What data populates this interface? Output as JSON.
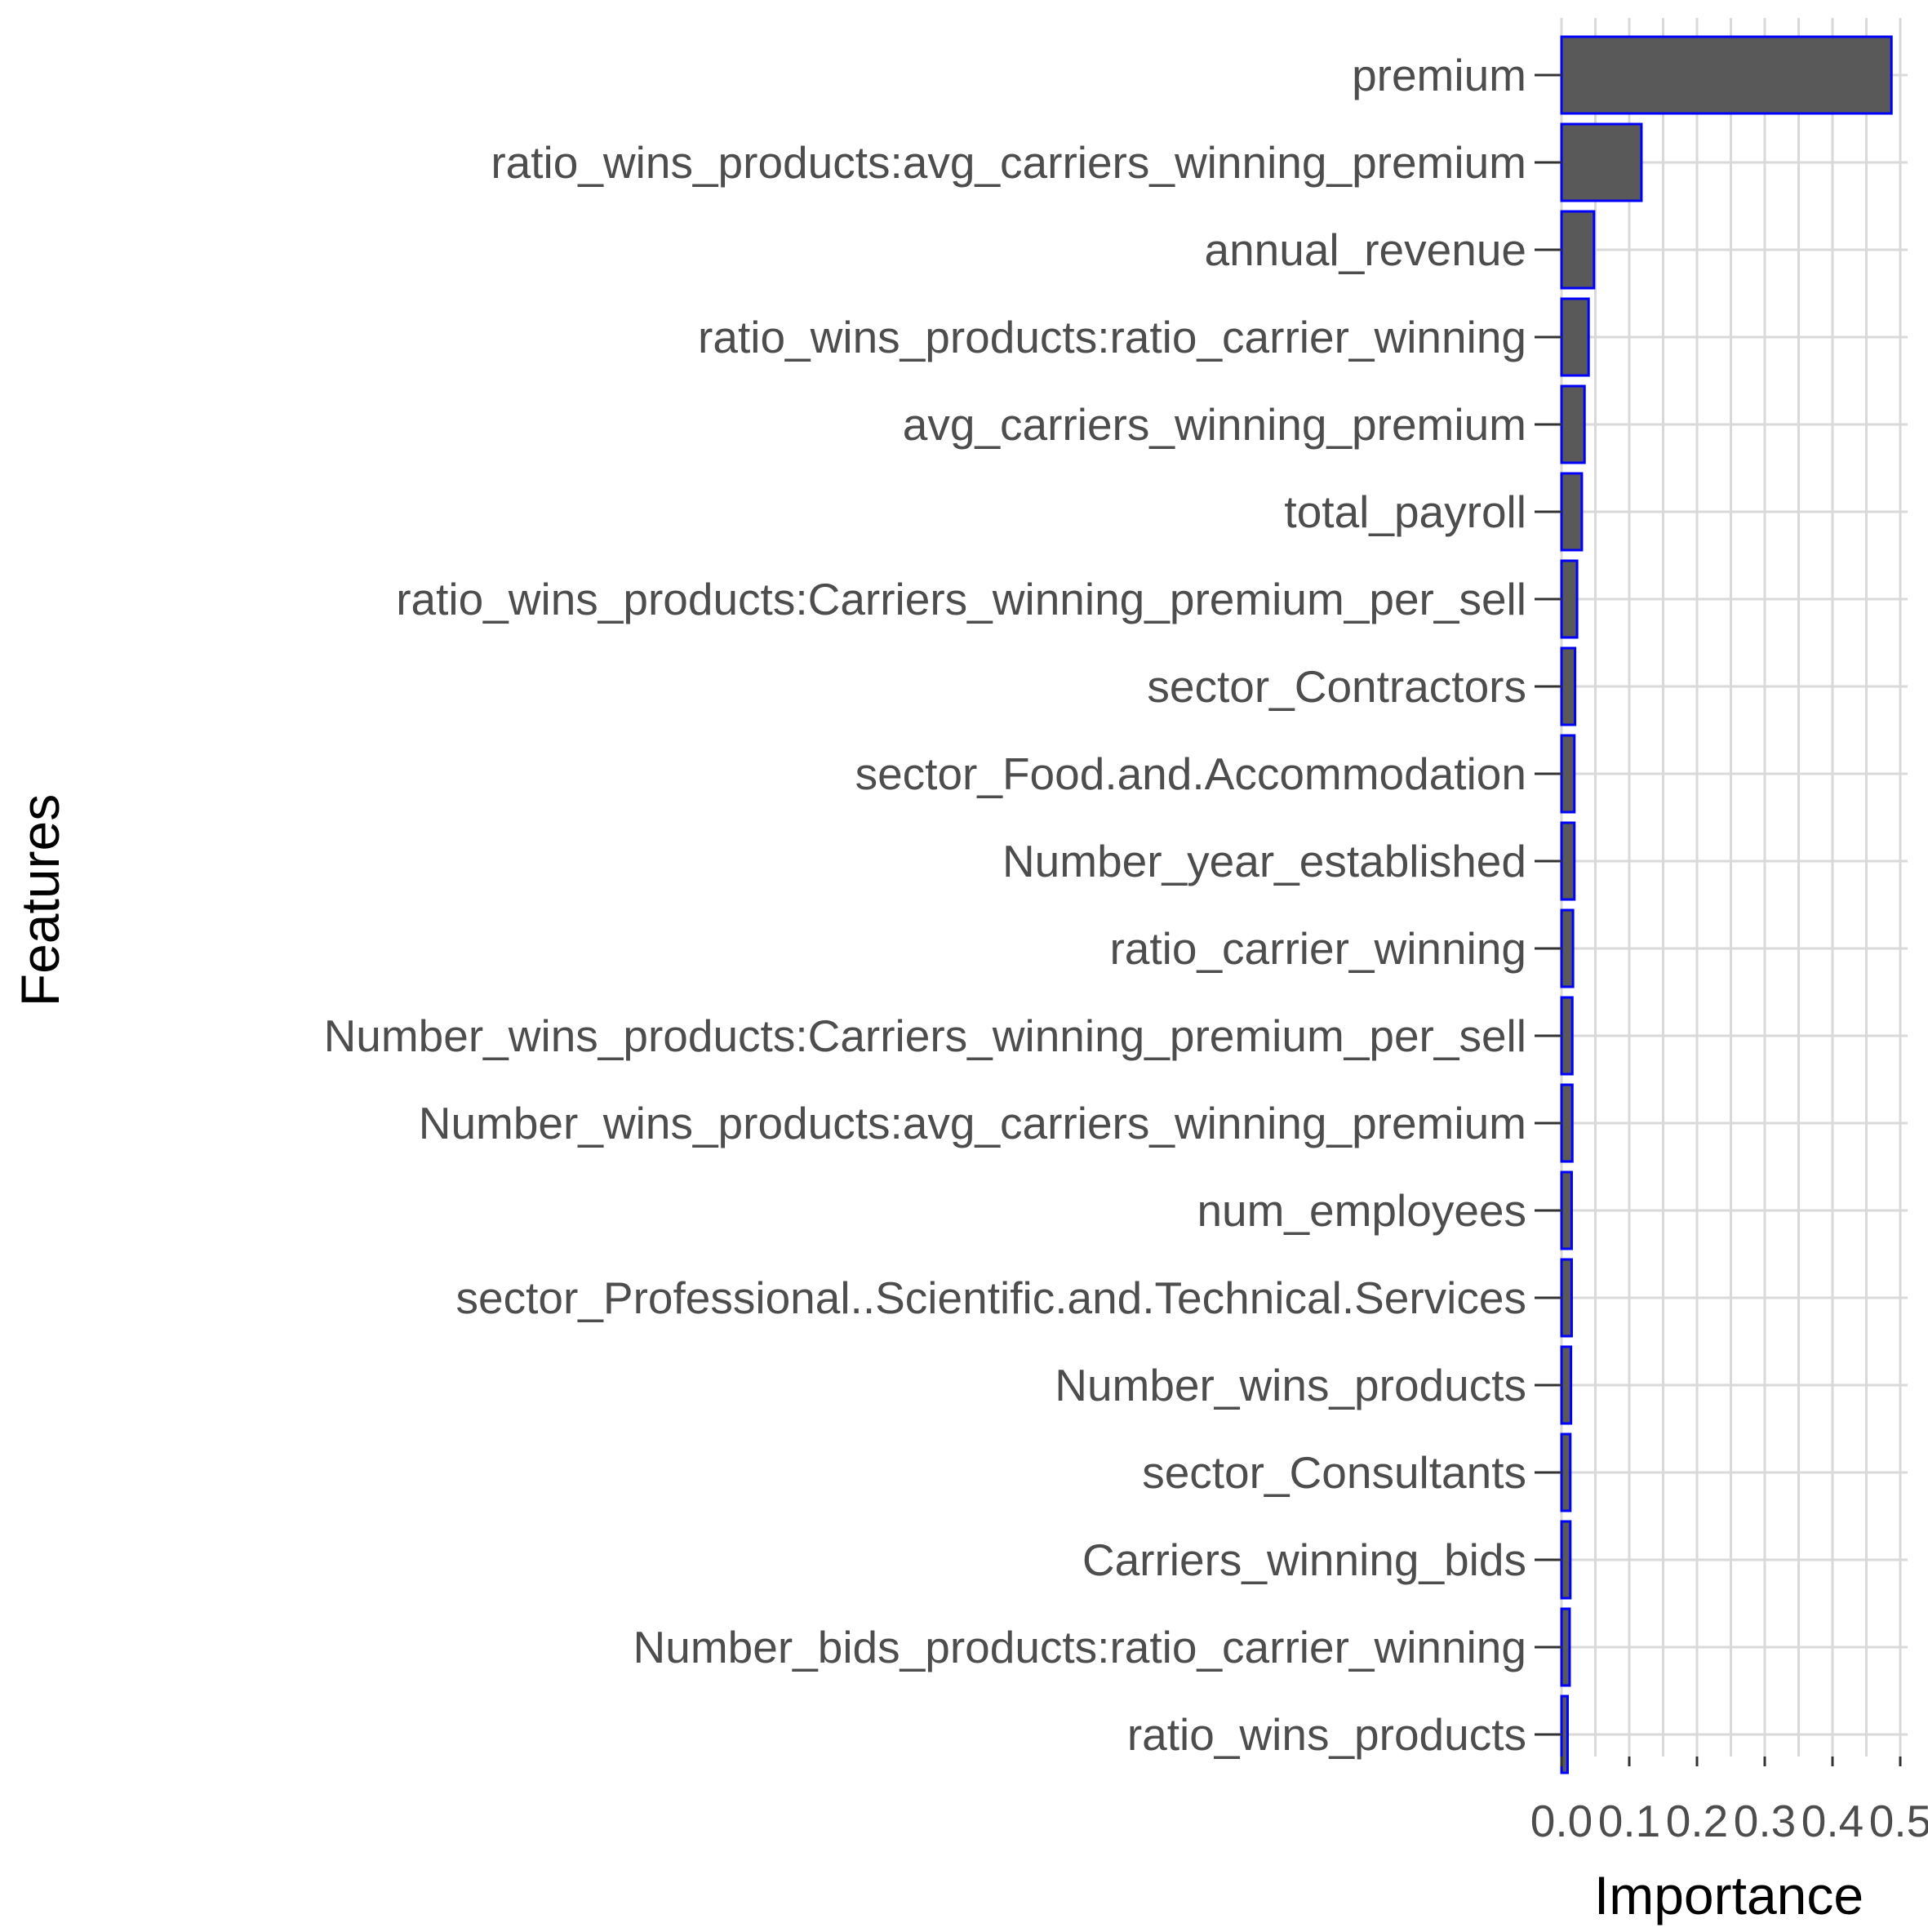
{
  "chart_data": {
    "type": "bar",
    "orientation": "horizontal",
    "xlabel": "Importance",
    "ylabel": "Features",
    "xlim": [
      0,
      0.5
    ],
    "x_ticks": [
      0.0,
      0.1,
      0.2,
      0.3,
      0.4,
      0.5
    ],
    "x_tick_labels": [
      "0.0",
      "0.1",
      "0.2",
      "0.3",
      "0.4",
      "0.5"
    ],
    "grid": true,
    "legend": "none",
    "bar_fill": "#595959",
    "bar_outline": "#0000ff",
    "categories": [
      "premium",
      "ratio_wins_products:avg_carriers_winning_premium",
      "annual_revenue",
      "ratio_wins_products:ratio_carrier_winning",
      "avg_carriers_winning_premium",
      "total_payroll",
      "ratio_wins_products:Carriers_winning_premium_per_sell",
      "sector_Contractors",
      "sector_Food.and.Accommodation",
      "Number_year_established",
      "ratio_carrier_winning",
      "Number_wins_products:Carriers_winning_premium_per_sell",
      "Number_wins_products:avg_carriers_winning_premium",
      "num_employees",
      "sector_Professional..Scientific.and.Technical.Services",
      "Number_wins_products",
      "sector_Consultants",
      "Carriers_winning_bids",
      "Number_bids_products:ratio_carrier_winning",
      "ratio_wins_products"
    ],
    "values": [
      0.487,
      0.118,
      0.048,
      0.04,
      0.034,
      0.03,
      0.023,
      0.02,
      0.019,
      0.019,
      0.017,
      0.016,
      0.016,
      0.015,
      0.015,
      0.014,
      0.013,
      0.013,
      0.012,
      0.009
    ]
  }
}
